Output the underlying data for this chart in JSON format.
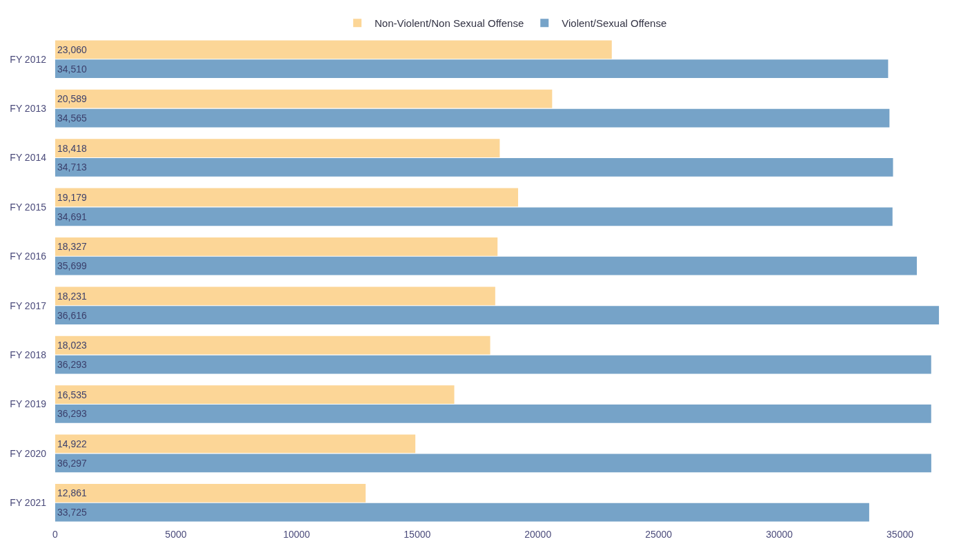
{
  "chart_data": {
    "type": "bar",
    "orientation": "horizontal",
    "categories": [
      "FY 2012",
      "FY 2013",
      "FY 2014",
      "FY 2015",
      "FY 2016",
      "FY 2017",
      "FY 2018",
      "FY 2019",
      "FY 2020",
      "FY 2021"
    ],
    "series": [
      {
        "name": "Non-Violent/Non Sexual Offense",
        "color": "#fcd697",
        "values": [
          23060,
          20589,
          18418,
          19179,
          18327,
          18231,
          18023,
          16535,
          14922,
          12861
        ],
        "value_labels": [
          "23,060",
          "20,589",
          "18,418",
          "19,179",
          "18,327",
          "18,231",
          "18,023",
          "16,535",
          "14,922",
          "12,861"
        ]
      },
      {
        "name": "Violent/Sexual Offense",
        "color": "#76a3c8",
        "values": [
          34510,
          34565,
          34713,
          34691,
          35699,
          36616,
          36293,
          36293,
          36297,
          33725
        ],
        "value_labels": [
          "34,510",
          "34,565",
          "34,713",
          "34,691",
          "35,699",
          "36,616",
          "36,293",
          "36,293",
          "36,297",
          "33,725"
        ]
      }
    ],
    "xlim": [
      0,
      37300
    ],
    "xticks": [
      0,
      5000,
      10000,
      15000,
      20000,
      25000,
      30000,
      35000
    ],
    "legend": "top"
  }
}
